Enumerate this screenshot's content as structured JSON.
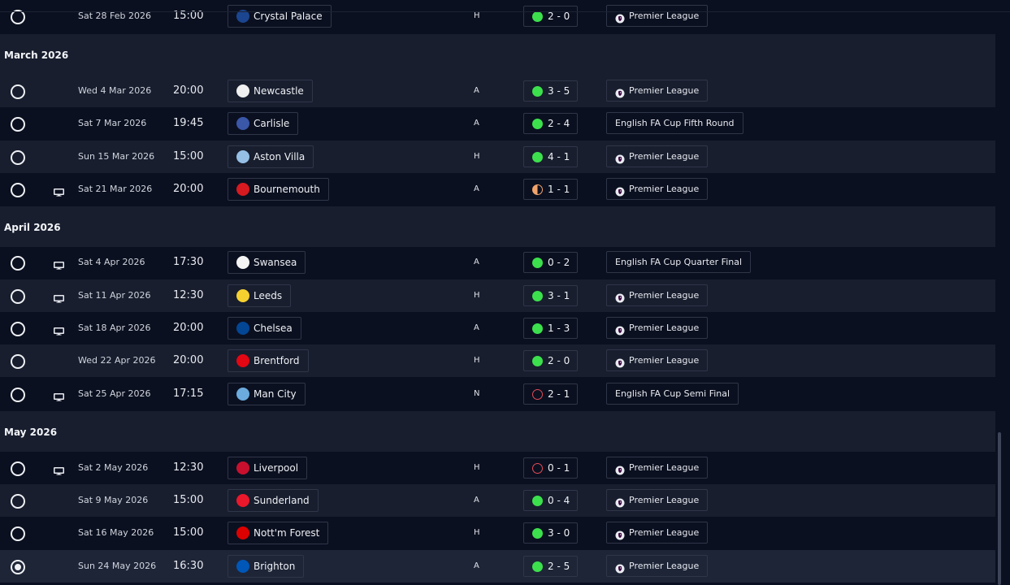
{
  "months": [
    "March 2026",
    "April 2026",
    "May 2026"
  ],
  "fixtures": [
    {
      "date": "Sat 28 Feb 2026",
      "time": "15:00",
      "team": "Crystal Palace",
      "crest": "crystal-palace-crest",
      "venue": "H",
      "result": "win",
      "score": "2 - 0",
      "competition": "Premier League",
      "comp_icon": "premier-league-lion-icon",
      "tv": false,
      "selected": false
    },
    {
      "date": "Wed 4 Mar 2026",
      "time": "20:00",
      "team": "Newcastle",
      "crest": "newcastle-crest",
      "venue": "A",
      "result": "win",
      "score": "3 - 5",
      "competition": "Premier League",
      "comp_icon": "premier-league-lion-icon",
      "tv": false,
      "selected": false
    },
    {
      "date": "Sat 7 Mar 2026",
      "time": "19:45",
      "team": "Carlisle",
      "crest": "carlisle-crest",
      "venue": "A",
      "result": "win",
      "score": "2 - 4",
      "competition": "English FA Cup Fifth Round",
      "comp_icon": "",
      "tv": false,
      "selected": false
    },
    {
      "date": "Sun 15 Mar 2026",
      "time": "15:00",
      "team": "Aston Villa",
      "crest": "aston-villa-crest",
      "venue": "H",
      "result": "win",
      "score": "4 - 1",
      "competition": "Premier League",
      "comp_icon": "premier-league-lion-icon",
      "tv": false,
      "selected": false
    },
    {
      "date": "Sat 21 Mar 2026",
      "time": "20:00",
      "team": "Bournemouth",
      "crest": "bournemouth-crest",
      "venue": "A",
      "result": "draw",
      "score": "1 - 1",
      "competition": "Premier League",
      "comp_icon": "premier-league-lion-icon",
      "tv": true,
      "selected": false
    },
    {
      "date": "Sat 4 Apr 2026",
      "time": "17:30",
      "team": "Swansea",
      "crest": "swansea-crest",
      "venue": "A",
      "result": "win",
      "score": "0 - 2",
      "competition": "English FA Cup Quarter Final",
      "comp_icon": "",
      "tv": true,
      "selected": false
    },
    {
      "date": "Sat 11 Apr 2026",
      "time": "12:30",
      "team": "Leeds",
      "crest": "leeds-crest",
      "venue": "H",
      "result": "win",
      "score": "3 - 1",
      "competition": "Premier League",
      "comp_icon": "premier-league-lion-icon",
      "tv": true,
      "selected": false
    },
    {
      "date": "Sat 18 Apr 2026",
      "time": "20:00",
      "team": "Chelsea",
      "crest": "chelsea-crest",
      "venue": "A",
      "result": "win",
      "score": "1 - 3",
      "competition": "Premier League",
      "comp_icon": "premier-league-lion-icon",
      "tv": true,
      "selected": false
    },
    {
      "date": "Wed 22 Apr 2026",
      "time": "20:00",
      "team": "Brentford",
      "crest": "brentford-crest",
      "venue": "H",
      "result": "win",
      "score": "2 - 0",
      "competition": "Premier League",
      "comp_icon": "premier-league-lion-icon",
      "tv": false,
      "selected": false
    },
    {
      "date": "Sat 25 Apr 2026",
      "time": "17:15",
      "team": "Man City",
      "crest": "man-city-crest",
      "venue": "N",
      "result": "loss",
      "score": "2 - 1",
      "competition": "English FA Cup Semi Final",
      "comp_icon": "",
      "tv": true,
      "selected": false
    },
    {
      "date": "Sat 2 May 2026",
      "time": "12:30",
      "team": "Liverpool",
      "crest": "liverpool-crest",
      "venue": "H",
      "result": "loss",
      "score": "0 - 1",
      "competition": "Premier League",
      "comp_icon": "premier-league-lion-icon",
      "tv": true,
      "selected": false
    },
    {
      "date": "Sat 9 May 2026",
      "time": "15:00",
      "team": "Sunderland",
      "crest": "sunderland-crest",
      "venue": "A",
      "result": "win",
      "score": "0 - 4",
      "competition": "Premier League",
      "comp_icon": "premier-league-lion-icon",
      "tv": false,
      "selected": false
    },
    {
      "date": "Sat 16 May 2026",
      "time": "15:00",
      "team": "Nott'm Forest",
      "crest": "nottm-forest-crest",
      "venue": "H",
      "result": "win",
      "score": "3 - 0",
      "competition": "Premier League",
      "comp_icon": "premier-league-lion-icon",
      "tv": false,
      "selected": false
    },
    {
      "date": "Sun 24 May 2026",
      "time": "16:30",
      "team": "Brighton",
      "crest": "brighton-crest",
      "venue": "A",
      "result": "win",
      "score": "2 - 5",
      "competition": "Premier League",
      "comp_icon": "premier-league-lion-icon",
      "tv": false,
      "selected": true
    }
  ],
  "colors": {
    "background": "#0b1020",
    "row_alt": "#181e2e",
    "win": "#3ce04d",
    "draw": "#f2a46b",
    "loss": "#e24c57",
    "crests": {
      "crystal-palace-crest": "#1b458f",
      "newcastle-crest": "#f0f0f0",
      "carlisle-crest": "#3a57a8",
      "aston-villa-crest": "#95bfe5",
      "bournemouth-crest": "#d71920",
      "swansea-crest": "#f4f4f4",
      "leeds-crest": "#f5d130",
      "chelsea-crest": "#034694",
      "brentford-crest": "#e30613",
      "man-city-crest": "#6cabdd",
      "liverpool-crest": "#c8102e",
      "sunderland-crest": "#eb172b",
      "nottm-forest-crest": "#dd0000",
      "brighton-crest": "#0057b8"
    }
  }
}
